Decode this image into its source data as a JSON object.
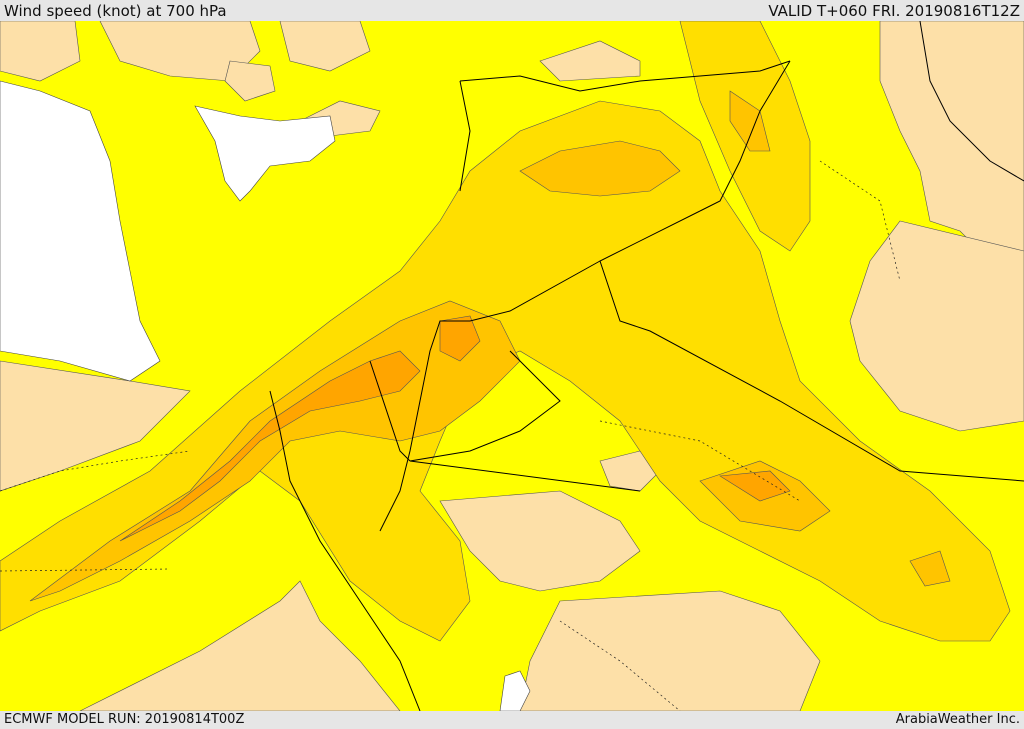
{
  "header": {
    "title": "Wind speed (knot) at 700 hPa",
    "valid": "VALID T+060 FRI. 20190816T12Z"
  },
  "footer": {
    "model_run": "ECMWF MODEL RUN: 20190814T00Z",
    "credit": "ArabiaWeather Inc."
  },
  "map": {
    "colors": {
      "band_low": "#fde0a8",
      "band_1": "#ffff00",
      "band_2": "#ffdf00",
      "band_3": "#ffc400",
      "band_4": "#ffa500",
      "sea_unshaded": "#ffffff",
      "border": "#000000"
    }
  }
}
